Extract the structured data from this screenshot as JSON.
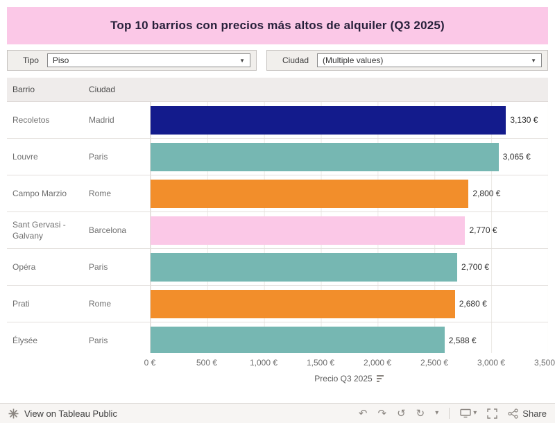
{
  "header": {
    "title": "Top 10 barrios con precios más altos de alquiler (Q3 2025)",
    "banner_color": "#fbc8e7"
  },
  "filters": [
    {
      "label": "Tipo",
      "value": "Piso"
    },
    {
      "label": "Ciudad",
      "value": "(Multiple values)"
    }
  ],
  "table": {
    "columns": [
      "Barrio",
      "Ciudad"
    ]
  },
  "chart_data": {
    "type": "bar",
    "title": "Top 10 barrios con precios más altos de alquiler (Q3 2025)",
    "xlabel": "Precio Q3 2025",
    "axis_max": 3500,
    "ticks": [
      "0 €",
      "500 €",
      "1,000 €",
      "1,500 €",
      "2,000 €",
      "2,500 €",
      "3,000 €",
      "3,500 €"
    ],
    "rows": [
      {
        "barrio": "Recoletos",
        "ciudad": "Madrid",
        "value": 3130,
        "label": "3,130 €",
        "color": "#131b8c"
      },
      {
        "barrio": "Louvre",
        "ciudad": "Paris",
        "value": 3065,
        "label": "3,065 €",
        "color": "#76b7b2"
      },
      {
        "barrio": "Campo Marzio",
        "ciudad": "Rome",
        "value": 2800,
        "label": "2,800 €",
        "color": "#f28e2b"
      },
      {
        "barrio": "Sant Gervasi - Galvany",
        "ciudad": "Barcelona",
        "value": 2770,
        "label": "2,770 €",
        "color": "#fbc8e7"
      },
      {
        "barrio": "Opéra",
        "ciudad": "Paris",
        "value": 2700,
        "label": "2,700 €",
        "color": "#76b7b2"
      },
      {
        "barrio": "Prati",
        "ciudad": "Rome",
        "value": 2680,
        "label": "2,680 €",
        "color": "#f28e2b"
      },
      {
        "barrio": "Élysée",
        "ciudad": "Paris",
        "value": 2588,
        "label": "2,588 €",
        "color": "#76b7b2"
      }
    ]
  },
  "footer": {
    "view_label": "View on Tableau Public",
    "share_label": "Share"
  }
}
